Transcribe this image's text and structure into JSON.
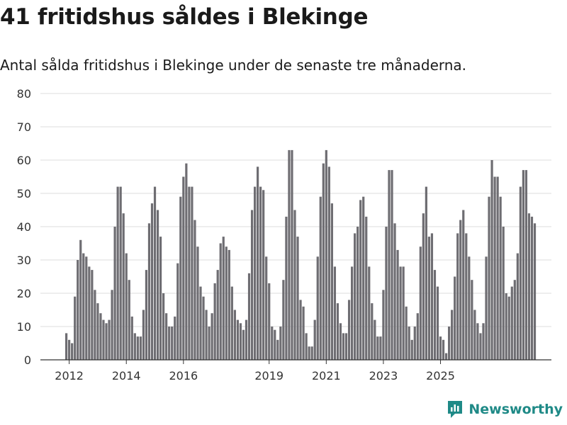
{
  "header": {
    "title": "41 fritidshus såldes i Blekinge",
    "subtitle": "Antal sålda fritidshus i Blekinge under de senaste tre månaderna."
  },
  "brand": {
    "label": "Newsworthy"
  },
  "colors": {
    "bar": "#6e6d72",
    "highlight": "#1e9a94",
    "grid": "#dcdcdc",
    "axis": "#333333",
    "brand": "#1f8a87"
  },
  "chart_data": {
    "type": "bar",
    "title": "41 fritidshus såldes i Blekinge",
    "xlabel": "",
    "ylabel": "",
    "ylim": [
      0,
      80
    ],
    "yticks": [
      0,
      10,
      20,
      30,
      40,
      50,
      60,
      70,
      80
    ],
    "xticks": [
      {
        "label": "2012",
        "index": 1
      },
      {
        "label": "2014",
        "index": 21
      },
      {
        "label": "2016",
        "index": 41
      },
      {
        "label": "2019",
        "index": 71
      },
      {
        "label": "2021",
        "index": 91
      },
      {
        "label": "2023",
        "index": 111
      },
      {
        "label": "2025",
        "index": 131
      }
    ],
    "values": [
      8,
      6,
      5,
      19,
      30,
      36,
      32,
      31,
      28,
      27,
      21,
      17,
      14,
      12,
      11,
      12,
      21,
      40,
      52,
      52,
      44,
      32,
      24,
      13,
      8,
      7,
      7,
      15,
      27,
      41,
      47,
      52,
      45,
      37,
      20,
      14,
      10,
      10,
      13,
      29,
      49,
      55,
      59,
      52,
      52,
      42,
      34,
      22,
      19,
      15,
      10,
      14,
      23,
      27,
      35,
      37,
      34,
      33,
      22,
      15,
      12,
      11,
      9,
      12,
      26,
      45,
      52,
      58,
      52,
      51,
      31,
      23,
      10,
      9,
      6,
      10,
      24,
      43,
      63,
      63,
      45,
      37,
      18,
      16,
      8,
      4,
      4,
      12,
      31,
      49,
      59,
      63,
      58,
      47,
      28,
      17,
      11,
      8,
      8,
      18,
      28,
      38,
      40,
      48,
      49,
      43,
      28,
      17,
      12,
      7,
      7,
      21,
      40,
      57,
      57,
      41,
      33,
      28,
      28,
      16,
      10,
      6,
      10,
      14,
      34,
      44,
      52,
      37,
      38,
      27,
      22,
      7,
      6,
      2,
      10,
      15,
      25,
      38,
      42,
      45,
      38,
      31,
      24,
      15,
      11,
      8,
      11,
      31,
      49,
      60,
      55,
      55,
      49,
      40,
      20,
      19,
      22,
      24,
      32,
      52,
      57,
      57,
      44,
      43,
      41
    ],
    "highlight_index": 167,
    "annotation": "41"
  }
}
